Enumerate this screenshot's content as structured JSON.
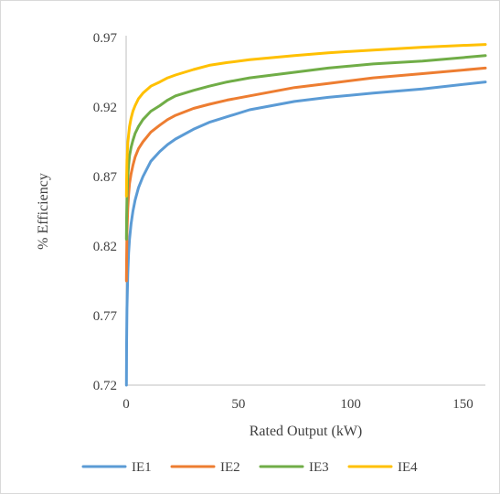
{
  "chart_data": {
    "type": "line",
    "title": "",
    "xlabel": "Rated Output (kW)",
    "ylabel": "% Efficiency",
    "xlim": [
      0,
      160
    ],
    "ylim": [
      0.72,
      0.97
    ],
    "xticks": [
      "0",
      "50",
      "100",
      "150"
    ],
    "yticks": [
      "0.72",
      "0.77",
      "0.82",
      "0.87",
      "0.92",
      "0.97"
    ],
    "grid": false,
    "legend_position": "bottom",
    "series": [
      {
        "name": "IE1",
        "color": "#5b9bd5",
        "x": [
          0.12,
          0.2,
          0.37,
          0.75,
          1.1,
          1.5,
          2.2,
          3,
          4,
          5.5,
          7.5,
          11,
          15,
          18.5,
          22,
          30,
          37,
          45,
          55,
          75,
          90,
          110,
          132,
          160
        ],
        "y": [
          0.72,
          0.75,
          0.775,
          0.8,
          0.815,
          0.825,
          0.836,
          0.845,
          0.853,
          0.862,
          0.87,
          0.881,
          0.888,
          0.893,
          0.897,
          0.904,
          0.909,
          0.913,
          0.918,
          0.924,
          0.927,
          0.93,
          0.933,
          0.938
        ]
      },
      {
        "name": "IE2",
        "color": "#ed7d31",
        "x": [
          0.12,
          0.2,
          0.37,
          0.75,
          1.1,
          1.5,
          2.2,
          3,
          4,
          5.5,
          7.5,
          11,
          15,
          18.5,
          22,
          30,
          37,
          45,
          55,
          75,
          90,
          110,
          132,
          160
        ],
        "y": [
          0.795,
          0.81,
          0.83,
          0.847,
          0.857,
          0.865,
          0.872,
          0.878,
          0.884,
          0.89,
          0.895,
          0.902,
          0.907,
          0.911,
          0.914,
          0.919,
          0.922,
          0.925,
          0.928,
          0.934,
          0.937,
          0.941,
          0.944,
          0.948
        ]
      },
      {
        "name": "IE3",
        "color": "#70ad47",
        "x": [
          0.12,
          0.2,
          0.37,
          0.75,
          1.1,
          1.5,
          2.2,
          3,
          4,
          5.5,
          7.5,
          11,
          15,
          18.5,
          22,
          30,
          37,
          45,
          55,
          75,
          90,
          110,
          132,
          160
        ],
        "y": [
          0.825,
          0.84,
          0.855,
          0.87,
          0.878,
          0.885,
          0.891,
          0.896,
          0.901,
          0.906,
          0.911,
          0.917,
          0.921,
          0.925,
          0.928,
          0.932,
          0.935,
          0.938,
          0.941,
          0.945,
          0.948,
          0.951,
          0.953,
          0.957
        ]
      },
      {
        "name": "IE4",
        "color": "#ffc000",
        "x": [
          0.12,
          0.2,
          0.37,
          0.75,
          1.1,
          1.5,
          2.2,
          3,
          4,
          5.5,
          7.5,
          11,
          15,
          18.5,
          22,
          30,
          37,
          45,
          55,
          75,
          90,
          110,
          132,
          160
        ],
        "y": [
          0.856,
          0.868,
          0.882,
          0.894,
          0.9,
          0.906,
          0.912,
          0.917,
          0.921,
          0.926,
          0.93,
          0.935,
          0.938,
          0.941,
          0.943,
          0.947,
          0.95,
          0.952,
          0.954,
          0.957,
          0.959,
          0.961,
          0.963,
          0.965
        ]
      }
    ]
  }
}
